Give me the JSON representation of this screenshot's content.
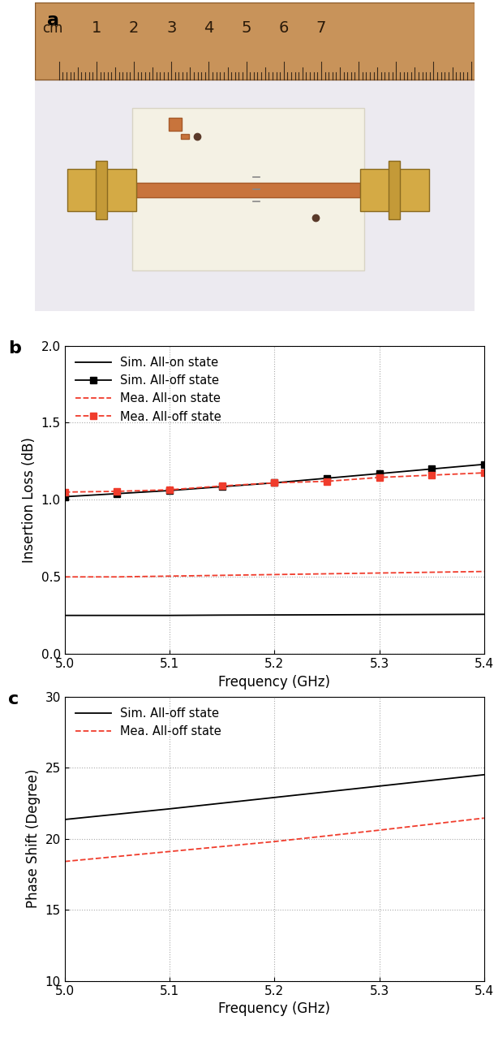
{
  "photo": {
    "panel_label": "a",
    "ruler": {
      "unit": "cm",
      "numbers": [
        1,
        2,
        3,
        4,
        5,
        6,
        7
      ]
    }
  },
  "chart_data": [
    {
      "type": "line",
      "panel_label": "b",
      "x_label": "Frequency (GHz)",
      "y_label": "Insertion Loss (dB)",
      "x": [
        5.0,
        5.05,
        5.1,
        5.15,
        5.2,
        5.25,
        5.3,
        5.35,
        5.4
      ],
      "series": [
        {
          "name": "Sim. All-on state",
          "color": "#000000",
          "line_style": "solid",
          "marker": "none",
          "values": [
            0.25,
            0.25,
            0.25,
            0.252,
            0.253,
            0.254,
            0.255,
            0.256,
            0.257
          ]
        },
        {
          "name": "Sim. All-off state",
          "color": "#000000",
          "line_style": "solid",
          "marker": "square",
          "values": [
            1.02,
            1.04,
            1.06,
            1.085,
            1.11,
            1.14,
            1.17,
            1.2,
            1.23
          ]
        },
        {
          "name": "Mea. All-on state",
          "color": "#f03c2c",
          "line_style": "dashed",
          "marker": "none",
          "values": [
            0.5,
            0.5,
            0.505,
            0.51,
            0.515,
            0.52,
            0.525,
            0.53,
            0.535
          ]
        },
        {
          "name": "Mea. All-off state",
          "color": "#f03c2c",
          "line_style": "dashed",
          "marker": "square",
          "values": [
            1.05,
            1.055,
            1.065,
            1.09,
            1.11,
            1.12,
            1.145,
            1.16,
            1.175
          ]
        }
      ],
      "xlim": [
        5.0,
        5.4
      ],
      "xticks": [
        {
          "value": 5.0,
          "label": "5.0"
        },
        5.1,
        5.2,
        5.3,
        5.4
      ],
      "ylim": [
        0.0,
        2.0
      ],
      "yticks": [
        {
          "value": 0.0,
          "label": "0.0"
        },
        0.5,
        {
          "value": 1.0,
          "label": "1.0"
        },
        1.5,
        {
          "value": 2.0,
          "label": "2.0"
        }
      ],
      "grid": true,
      "legend": "upper left"
    },
    {
      "type": "line",
      "panel_label": "c",
      "x_label": "Frequency (GHz)",
      "y_label": "Phase Shift (Degree)",
      "x": [
        5.0,
        5.1,
        5.2,
        5.3,
        5.4
      ],
      "series": [
        {
          "name": "Sim. All-off state",
          "color": "#000000",
          "line_style": "solid",
          "marker": "none",
          "values": [
            21.35,
            22.1,
            22.9,
            23.7,
            24.5
          ]
        },
        {
          "name": "Mea. All-off state",
          "color": "#f03c2c",
          "line_style": "dashed",
          "marker": "none",
          "values": [
            18.4,
            19.1,
            19.8,
            20.6,
            21.45
          ]
        }
      ],
      "xlim": [
        5.0,
        5.4
      ],
      "xticks": [
        {
          "value": 5.0,
          "label": "5.0"
        },
        5.1,
        5.2,
        5.3,
        5.4
      ],
      "ylim": [
        10,
        30
      ],
      "yticks": [
        10,
        15,
        20,
        25,
        30
      ],
      "grid": true,
      "legend": "upper left"
    }
  ]
}
